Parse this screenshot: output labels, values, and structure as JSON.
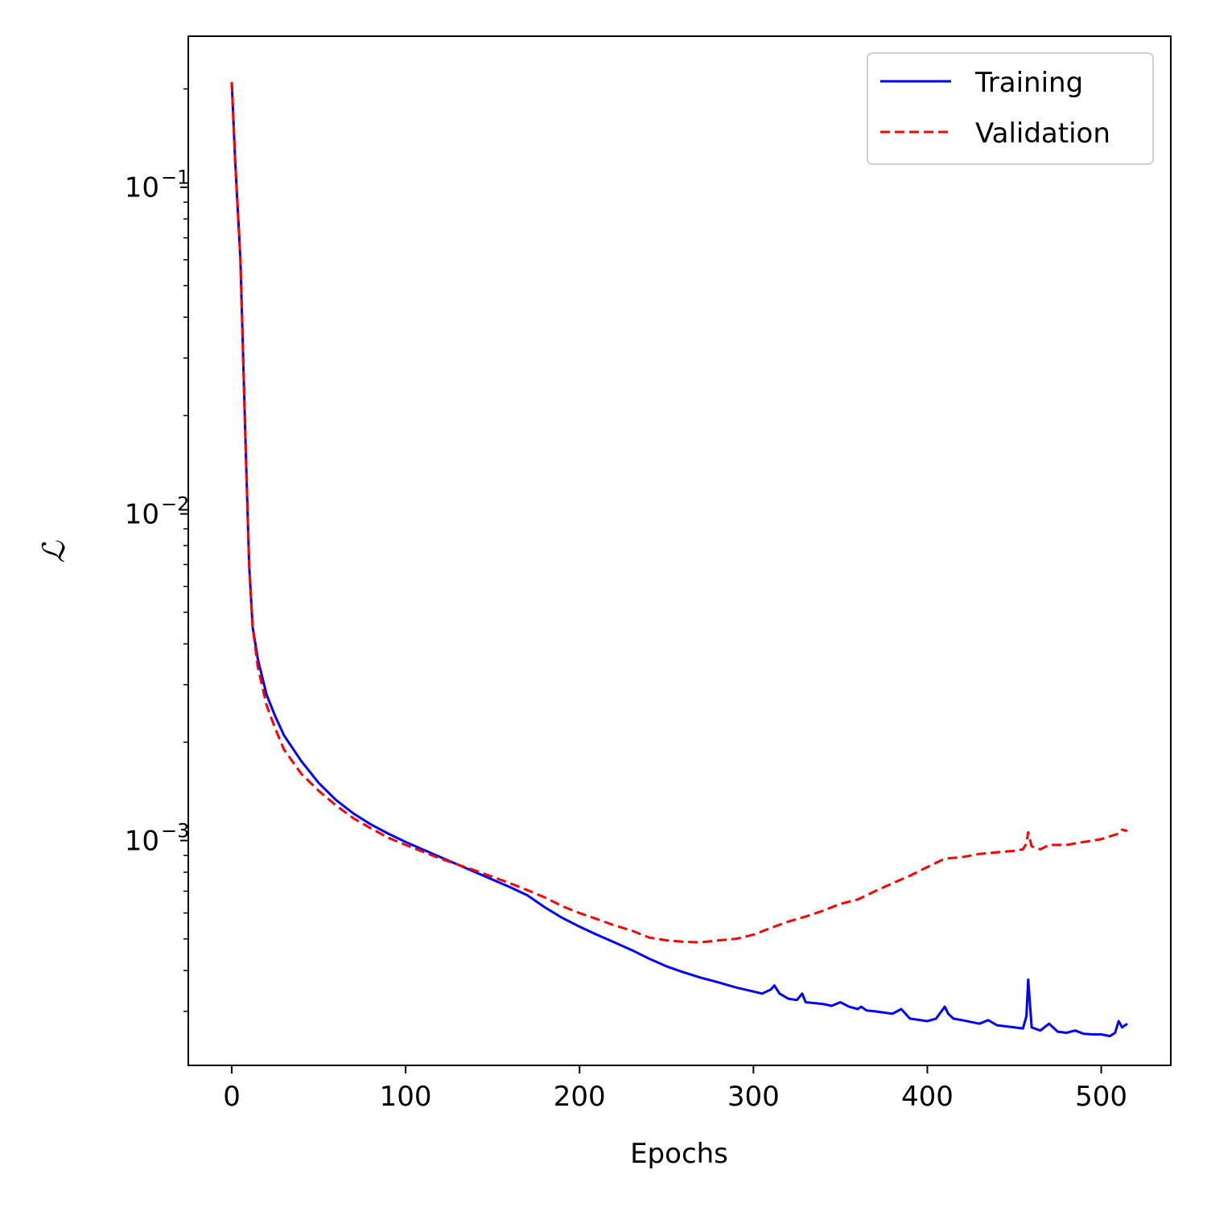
{
  "chart_data": {
    "type": "line",
    "title": "",
    "xlabel": "Epochs",
    "ylabel": "ℒ",
    "x_scale": "linear",
    "y_scale": "log",
    "xlim": [
      -25,
      540
    ],
    "ylim": [
      0.000205,
      0.29
    ],
    "x_ticks": [
      0,
      100,
      200,
      300,
      400,
      500
    ],
    "x_tick_labels": [
      "0",
      "100",
      "200",
      "300",
      "400",
      "500"
    ],
    "y_ticks": [
      0.1,
      0.01,
      0.001
    ],
    "y_tick_labels": [
      {
        "base": "10",
        "exp": "−1"
      },
      {
        "base": "10",
        "exp": "−2"
      },
      {
        "base": "10",
        "exp": "−3"
      }
    ],
    "grid": false,
    "legend_position": "top-right",
    "series": [
      {
        "name": "Training",
        "color": "#0000ff",
        "style": "solid",
        "x": [
          0,
          2,
          5,
          8,
          10,
          12,
          15,
          20,
          25,
          30,
          40,
          50,
          60,
          70,
          80,
          90,
          100,
          120,
          140,
          160,
          170,
          180,
          190,
          200,
          210,
          220,
          230,
          240,
          250,
          260,
          270,
          280,
          290,
          300,
          305,
          310,
          312,
          315,
          320,
          325,
          328,
          330,
          340,
          345,
          350,
          355,
          360,
          362,
          365,
          370,
          380,
          385,
          390,
          400,
          405,
          410,
          412,
          415,
          420,
          430,
          435,
          440,
          450,
          455,
          457,
          458,
          460,
          465,
          470,
          475,
          480,
          485,
          490,
          495,
          500,
          505,
          508,
          510,
          512,
          515
        ],
        "y": [
          0.21,
          0.12,
          0.06,
          0.016,
          0.007,
          0.0045,
          0.0036,
          0.0028,
          0.0024,
          0.0021,
          0.00175,
          0.0015,
          0.00133,
          0.00121,
          0.00112,
          0.00105,
          0.00099,
          0.00089,
          0.0008,
          0.00072,
          0.00068,
          0.000625,
          0.00058,
          0.000545,
          0.000515,
          0.000488,
          0.000462,
          0.000435,
          0.000412,
          0.000395,
          0.00038,
          0.000368,
          0.000355,
          0.000345,
          0.00034,
          0.00035,
          0.00036,
          0.00034,
          0.000328,
          0.000325,
          0.00034,
          0.00032,
          0.000316,
          0.000312,
          0.00032,
          0.00031,
          0.000305,
          0.00031,
          0.000302,
          0.0003,
          0.000295,
          0.000305,
          0.000285,
          0.00028,
          0.000285,
          0.00031,
          0.000295,
          0.000285,
          0.000282,
          0.000275,
          0.000282,
          0.000272,
          0.000268,
          0.000266,
          0.00029,
          0.000375,
          0.000268,
          0.000262,
          0.000275,
          0.00026,
          0.000258,
          0.000262,
          0.000256,
          0.000255,
          0.000255,
          0.000252,
          0.000258,
          0.00028,
          0.000268,
          0.000275
        ]
      },
      {
        "name": "Validation",
        "color": "#ff0000",
        "style": "dashed",
        "x": [
          0,
          2,
          5,
          8,
          10,
          12,
          15,
          20,
          25,
          30,
          40,
          50,
          60,
          70,
          80,
          90,
          100,
          120,
          140,
          160,
          170,
          180,
          190,
          200,
          210,
          220,
          230,
          240,
          250,
          260,
          270,
          280,
          290,
          300,
          310,
          320,
          330,
          340,
          350,
          360,
          370,
          380,
          390,
          400,
          410,
          420,
          430,
          440,
          450,
          455,
          457,
          458,
          460,
          465,
          470,
          480,
          490,
          500,
          505,
          510,
          512,
          515
        ],
        "y": [
          0.21,
          0.12,
          0.06,
          0.016,
          0.007,
          0.0045,
          0.0034,
          0.0026,
          0.0022,
          0.0019,
          0.0016,
          0.00142,
          0.00128,
          0.00117,
          0.00109,
          0.00102,
          0.00097,
          0.00088,
          0.00081,
          0.00074,
          0.000705,
          0.00067,
          0.00063,
          0.0006,
          0.000575,
          0.00055,
          0.00053,
          0.000505,
          0.000495,
          0.00049,
          0.000488,
          0.000495,
          0.0005,
          0.000515,
          0.00054,
          0.000565,
          0.000585,
          0.00061,
          0.00064,
          0.00066,
          0.0007,
          0.00074,
          0.00078,
          0.00083,
          0.00088,
          0.00089,
          0.00091,
          0.00092,
          0.00093,
          0.00094,
          0.00098,
          0.00106,
          0.00096,
          0.00094,
          0.00097,
          0.00097,
          0.00099,
          0.00101,
          0.00103,
          0.00105,
          0.00108,
          0.00107
        ]
      }
    ]
  }
}
